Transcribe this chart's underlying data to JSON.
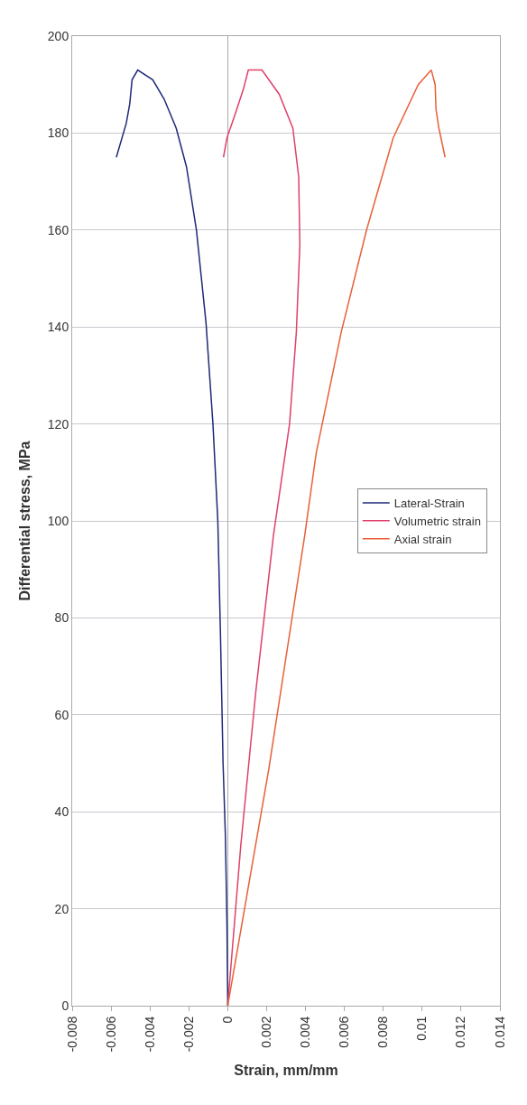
{
  "chart_data": {
    "type": "line",
    "xlabel": "Strain, mm/mm",
    "ylabel": "Differential stress, MPa",
    "xlim": [
      -0.008,
      0.014
    ],
    "xticks": [
      -0.008,
      -0.006,
      -0.004,
      -0.002,
      0,
      0.002,
      0.004,
      0.006,
      0.008,
      0.01,
      0.012,
      0.014
    ],
    "ylim": [
      0,
      200
    ],
    "yticks": [
      0,
      20,
      40,
      60,
      80,
      100,
      120,
      140,
      160,
      180,
      200
    ],
    "grid": "y",
    "legend": "right",
    "marker": "none",
    "line_style": "solid",
    "series": [
      {
        "name": "Lateral-Strain",
        "color": "#1f2a78",
        "x": [
          0,
          -4e-05,
          -0.00012,
          -0.00024,
          -0.00037,
          -0.00051,
          -0.00076,
          -0.00112,
          -0.00161,
          -0.00212,
          -0.00265,
          -0.00327,
          -0.00386,
          -0.00463,
          -0.00492,
          -0.00504,
          -0.00522,
          -0.00573
        ],
        "values": [
          0,
          17,
          35,
          50,
          76,
          100,
          120,
          141,
          160,
          173,
          181,
          187,
          191,
          193,
          191,
          186,
          182,
          175
        ]
      },
      {
        "name": "Volumetric strain",
        "color": "#e0406a",
        "x": [
          0,
          0.00067,
          0.00145,
          0.00235,
          0.00318,
          0.00353,
          0.00371,
          0.00365,
          0.00335,
          0.00265,
          0.00176,
          0.00106,
          0.0008,
          0.00039,
          -4e-05,
          -0.00022
        ],
        "values": [
          0,
          33,
          65,
          97,
          120,
          139,
          157,
          171,
          181,
          188,
          193,
          193,
          189,
          184,
          179,
          175
        ]
      },
      {
        "name": "Axial strain",
        "color": "#e8603a",
        "x": [
          0,
          0.00212,
          0.00396,
          0.00455,
          0.00584,
          0.00714,
          0.00851,
          0.0098,
          0.01047,
          0.01067,
          0.01071,
          0.01086,
          0.01118
        ],
        "values": [
          0,
          49,
          97,
          114,
          139,
          160,
          179,
          190,
          193,
          190,
          185,
          181,
          175
        ]
      }
    ]
  }
}
